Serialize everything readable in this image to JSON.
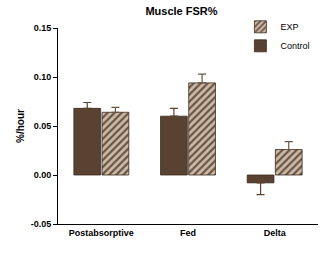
{
  "chart_data": {
    "type": "bar",
    "title": "Muscle FSR%",
    "y_label": "%/hour",
    "categories": [
      "Postabsorptive",
      "Fed",
      "Delta"
    ],
    "series": [
      {
        "name": "Control",
        "color": "#5a4232",
        "marker": "solid",
        "values": [
          0.068,
          0.06,
          -0.008
        ],
        "errors": [
          0.006,
          0.008,
          0.012
        ]
      },
      {
        "name": "EXP",
        "color": "#6b5444",
        "marker": "hatched",
        "values": [
          0.064,
          0.094,
          0.026
        ],
        "errors": [
          0.005,
          0.009,
          0.008
        ]
      }
    ],
    "ylim": [
      -0.05,
      0.15
    ],
    "yticks": [
      {
        "value": -0.05,
        "label": "-0.05"
      },
      {
        "value": 0,
        "label": "0.00"
      },
      {
        "value": 0.05,
        "label": "0.05"
      },
      {
        "value": 0.1,
        "label": "0.10"
      },
      {
        "value": 0.15,
        "label": "0.15"
      }
    ],
    "grid": false,
    "legend": "top right"
  }
}
